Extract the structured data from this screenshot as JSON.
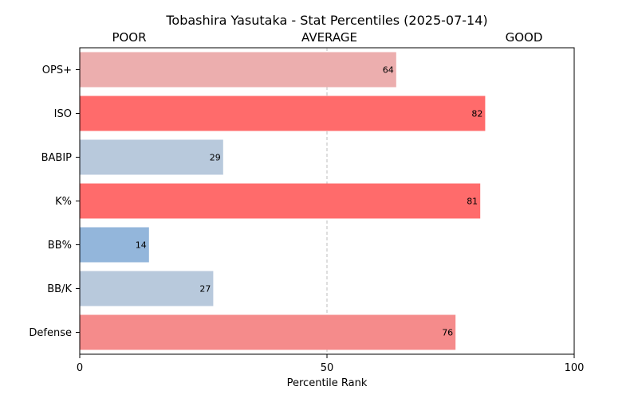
{
  "chart_data": {
    "type": "bar",
    "orientation": "horizontal",
    "title": "Tobashira Yasutaka - Stat Percentiles (2025-07-14)",
    "band_labels": [
      "POOR",
      "AVERAGE",
      "GOOD"
    ],
    "xlabel": "Percentile Rank",
    "ylabel": "",
    "xlim": [
      0,
      100
    ],
    "xticks": [
      0,
      50,
      100
    ],
    "reference_line": 50,
    "categories": [
      "OPS+",
      "ISO",
      "BABIP",
      "K%",
      "BB%",
      "BB/K",
      "Defense"
    ],
    "values": [
      64,
      82,
      29,
      81,
      14,
      27,
      76
    ],
    "colors": [
      "#ecaeae",
      "#ff6b6b",
      "#b8c9dc",
      "#ff6b6b",
      "#93b6db",
      "#b8c9dc",
      "#f58b8b"
    ],
    "grid": false,
    "legend": "none"
  }
}
